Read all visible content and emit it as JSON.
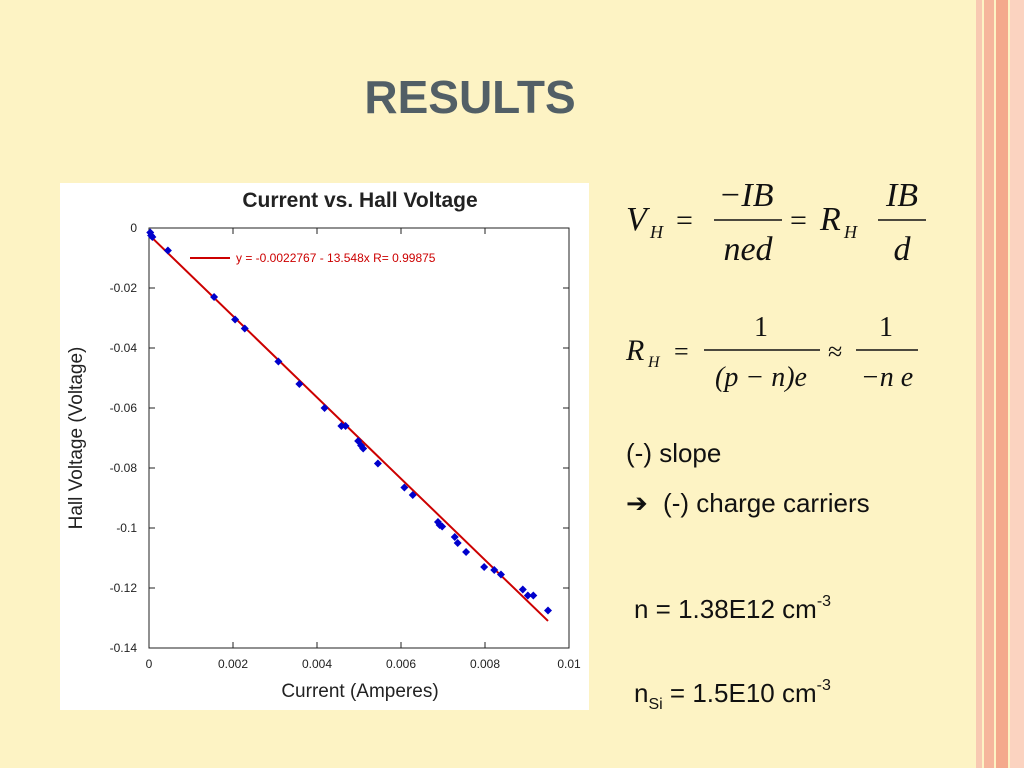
{
  "slide": {
    "title": "RESULTS",
    "colors": {
      "background": "#fdf3c4",
      "stripe_light": "#fbd3c0",
      "stripe_dark": "#f4a98c",
      "title": "#525f66"
    }
  },
  "equations": {
    "hall_voltage": "V_H = -IB / (ned) = R_H · IB / d",
    "hall_coefficient": "R_H = 1 / ((p - n)e) ≈ 1 / (-n e)"
  },
  "notes": {
    "slope": "(-) slope",
    "arrow_icon": "right-arrow-icon",
    "arrow_glyph": "➔",
    "carriers": "(-) charge carriers",
    "n_label": "n = 1.38E12 cm",
    "n_exp": "-3",
    "nsi_n": "n",
    "nsi_sub": "Si",
    "nsi_value": " = 1.5E10 cm",
    "nsi_exp": "-3"
  },
  "chart_data": {
    "type": "scatter",
    "title": "Current vs. Hall Voltage",
    "xlabel": "Current (Amperes)",
    "ylabel": "Hall Voltage (Voltage)",
    "xlim": [
      0,
      0.01
    ],
    "ylim": [
      -0.14,
      0
    ],
    "xticks": [
      "0",
      "0.002",
      "0.004",
      "0.006",
      "0.008",
      "0.01"
    ],
    "yticks": [
      "0",
      "-0.02",
      "-0.04",
      "-0.06",
      "-0.08",
      "-0.1",
      "-0.12",
      "-0.14"
    ],
    "grid": false,
    "legend": {
      "position": "top-left",
      "label": "y = -0.0022767 - 13.548x   R= 0.99875"
    },
    "fit": {
      "intercept": -0.0022767,
      "slope": -13.548,
      "x_range": [
        0,
        0.0095
      ],
      "color": "#cc0000"
    },
    "marker_color": "#0000cc",
    "points": [
      [
        3e-05,
        -0.0015
      ],
      [
        5e-05,
        -0.0025
      ],
      [
        8e-05,
        -0.003
      ],
      [
        0.00045,
        -0.0075
      ],
      [
        0.00155,
        -0.023
      ],
      [
        0.00205,
        -0.0305
      ],
      [
        0.00228,
        -0.0335
      ],
      [
        0.00308,
        -0.0445
      ],
      [
        0.00358,
        -0.052
      ],
      [
        0.00418,
        -0.06
      ],
      [
        0.00458,
        -0.066
      ],
      [
        0.00468,
        -0.066
      ],
      [
        0.00498,
        -0.071
      ],
      [
        0.00505,
        -0.0725
      ],
      [
        0.0051,
        -0.0735
      ],
      [
        0.00545,
        -0.0785
      ],
      [
        0.00608,
        -0.0865
      ],
      [
        0.00628,
        -0.089
      ],
      [
        0.00688,
        -0.098
      ],
      [
        0.00692,
        -0.099
      ],
      [
        0.00698,
        -0.0995
      ],
      [
        0.00728,
        -0.103
      ],
      [
        0.00735,
        -0.105
      ],
      [
        0.00755,
        -0.108
      ],
      [
        0.00798,
        -0.113
      ],
      [
        0.00822,
        -0.114
      ],
      [
        0.00838,
        -0.1155
      ],
      [
        0.0089,
        -0.1205
      ],
      [
        0.00902,
        -0.1225
      ],
      [
        0.00915,
        -0.1225
      ],
      [
        0.0095,
        -0.1275
      ]
    ]
  }
}
